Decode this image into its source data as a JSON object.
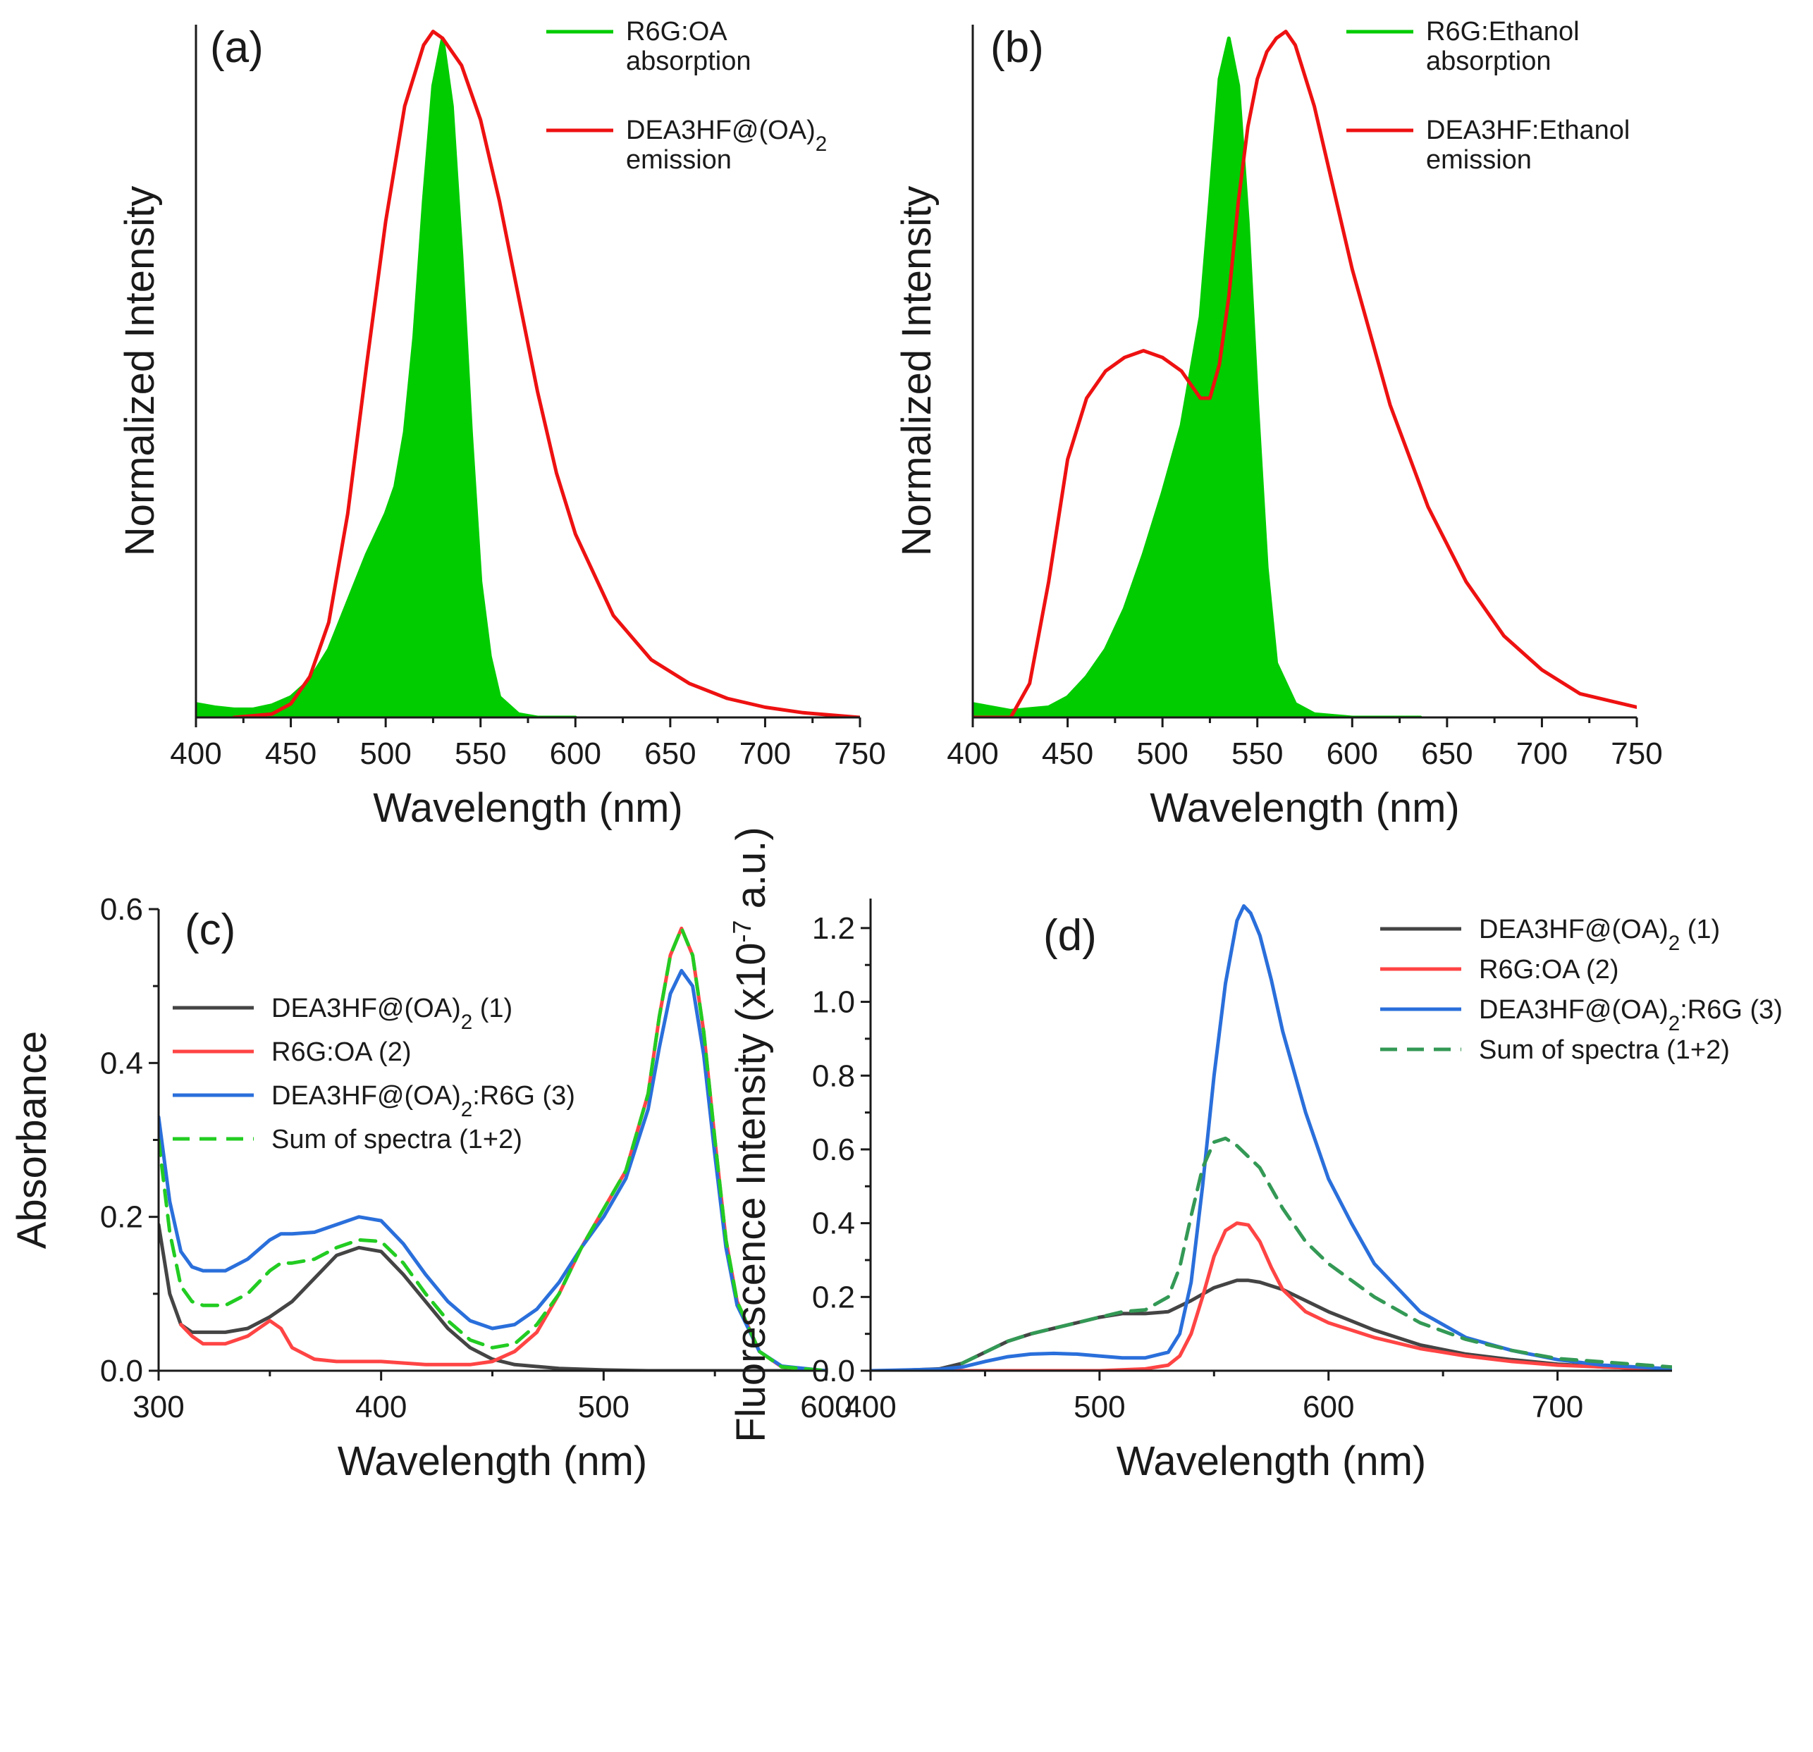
{
  "chart_data": [
    {
      "id": "a",
      "type": "line",
      "panel_label": "(a)",
      "xlabel": "Wavelength (nm)",
      "ylabel": "Normalized Intensity",
      "xlim": [
        400,
        750
      ],
      "ylim": [
        0,
        1.02
      ],
      "xticks": [
        400,
        450,
        500,
        550,
        600,
        650,
        700,
        750
      ],
      "yticks": [],
      "legend_position": "top-right",
      "series": [
        {
          "name": "R6G:OA absorption",
          "legend_lines": [
            "R6G:OA",
            "absorption"
          ],
          "color": "#00cc00",
          "filled": true,
          "dash": false,
          "x": [
            400,
            410,
            420,
            430,
            440,
            450,
            460,
            470,
            480,
            490,
            500,
            505,
            510,
            515,
            520,
            525,
            530,
            535,
            540,
            545,
            550,
            555,
            560,
            570,
            580,
            600
          ],
          "y": [
            0.02,
            0.015,
            0.012,
            0.012,
            0.018,
            0.03,
            0.055,
            0.1,
            0.17,
            0.24,
            0.3,
            0.34,
            0.42,
            0.56,
            0.76,
            0.93,
            1.0,
            0.9,
            0.68,
            0.42,
            0.2,
            0.09,
            0.03,
            0.005,
            0.0,
            0.0
          ]
        },
        {
          "name": "DEA3HF@(OA)2 emission",
          "legend_lines": [
            "DEA3HF@(OA)2",
            "emission"
          ],
          "color": "#ee1111",
          "filled": false,
          "dash": false,
          "x": [
            420,
            440,
            450,
            460,
            470,
            480,
            490,
            500,
            510,
            520,
            525,
            530,
            540,
            550,
            560,
            570,
            580,
            590,
            600,
            620,
            640,
            660,
            680,
            700,
            720,
            750
          ],
          "y": [
            0.0,
            0.005,
            0.02,
            0.06,
            0.14,
            0.3,
            0.52,
            0.73,
            0.9,
            0.99,
            1.01,
            1.0,
            0.96,
            0.88,
            0.76,
            0.62,
            0.48,
            0.36,
            0.27,
            0.15,
            0.085,
            0.05,
            0.028,
            0.015,
            0.007,
            0.0
          ]
        }
      ]
    },
    {
      "id": "b",
      "type": "line",
      "panel_label": "(b)",
      "xlabel": "Wavelength (nm)",
      "ylabel": "Normalized Intensity",
      "xlim": [
        400,
        750
      ],
      "ylim": [
        0,
        1.02
      ],
      "xticks": [
        400,
        450,
        500,
        550,
        600,
        650,
        700,
        750
      ],
      "yticks": [],
      "legend_position": "top-right",
      "series": [
        {
          "name": "R6G:Ethanol absorption",
          "legend_lines": [
            "R6G:Ethanol",
            "absorption"
          ],
          "color": "#00cc00",
          "filled": true,
          "dash": false,
          "x": [
            400,
            420,
            440,
            450,
            460,
            470,
            480,
            490,
            500,
            510,
            520,
            525,
            530,
            535,
            540,
            545,
            550,
            555,
            560,
            570,
            580,
            600,
            636
          ],
          "y": [
            0.02,
            0.01,
            0.015,
            0.03,
            0.06,
            0.1,
            0.16,
            0.24,
            0.33,
            0.43,
            0.59,
            0.76,
            0.94,
            1.0,
            0.93,
            0.73,
            0.46,
            0.22,
            0.08,
            0.02,
            0.005,
            0.0,
            0.0
          ]
        },
        {
          "name": "DEA3HF:Ethanol emission",
          "legend_lines": [
            "DEA3HF:Ethanol",
            "emission"
          ],
          "color": "#ee1111",
          "filled": false,
          "dash": false,
          "x": [
            400,
            420,
            430,
            440,
            450,
            460,
            470,
            480,
            490,
            500,
            510,
            515,
            520,
            525,
            530,
            535,
            540,
            545,
            550,
            555,
            560,
            565,
            570,
            580,
            590,
            600,
            620,
            640,
            660,
            680,
            700,
            720,
            750
          ],
          "y": [
            0.0,
            0.0,
            0.05,
            0.2,
            0.38,
            0.47,
            0.51,
            0.53,
            0.54,
            0.53,
            0.51,
            0.49,
            0.47,
            0.47,
            0.52,
            0.62,
            0.76,
            0.87,
            0.94,
            0.98,
            1.0,
            1.01,
            0.99,
            0.9,
            0.78,
            0.66,
            0.46,
            0.31,
            0.2,
            0.12,
            0.07,
            0.035,
            0.015
          ]
        }
      ]
    },
    {
      "id": "c",
      "type": "line",
      "panel_label": "(c)",
      "xlabel": "Wavelength (nm)",
      "ylabel": "Absorbance",
      "xlim": [
        300,
        600
      ],
      "ylim": [
        0,
        0.6
      ],
      "xticks": [
        300,
        400,
        500,
        600
      ],
      "yticks": [
        0.0,
        0.2,
        0.4,
        0.6
      ],
      "yticklabels": [
        "0.0",
        "0.2",
        "0.4",
        "0.6"
      ],
      "legend_position": "upper-left",
      "series": [
        {
          "name": "DEA3HF@(OA)2 (1)",
          "color": "#444444",
          "filled": false,
          "dash": false,
          "x": [
            300,
            305,
            310,
            315,
            320,
            330,
            340,
            350,
            360,
            370,
            380,
            390,
            400,
            410,
            420,
            430,
            440,
            450,
            460,
            480,
            500,
            520,
            600
          ],
          "y": [
            0.19,
            0.1,
            0.06,
            0.05,
            0.05,
            0.05,
            0.055,
            0.07,
            0.09,
            0.12,
            0.15,
            0.16,
            0.155,
            0.125,
            0.09,
            0.055,
            0.03,
            0.015,
            0.008,
            0.003,
            0.001,
            0.0,
            0.0
          ]
        },
        {
          "name": "R6G:OA (2)",
          "color": "#ff4444",
          "filled": false,
          "dash": false,
          "x": [
            310,
            315,
            320,
            330,
            340,
            345,
            350,
            355,
            360,
            370,
            380,
            400,
            420,
            440,
            450,
            460,
            470,
            480,
            490,
            500,
            510,
            520,
            525,
            530,
            535,
            540,
            545,
            550,
            555,
            560,
            570,
            580,
            600
          ],
          "y": [
            0.06,
            0.045,
            0.035,
            0.035,
            0.045,
            0.055,
            0.065,
            0.055,
            0.03,
            0.015,
            0.012,
            0.012,
            0.008,
            0.008,
            0.012,
            0.025,
            0.05,
            0.1,
            0.16,
            0.21,
            0.26,
            0.36,
            0.46,
            0.54,
            0.575,
            0.54,
            0.44,
            0.3,
            0.17,
            0.09,
            0.025,
            0.005,
            0.0
          ]
        },
        {
          "name": "DEA3HF@(OA)2:R6G (3)",
          "color": "#2a6fdb",
          "filled": false,
          "dash": false,
          "x": [
            300,
            305,
            310,
            315,
            320,
            330,
            340,
            350,
            355,
            360,
            370,
            380,
            390,
            400,
            410,
            420,
            430,
            440,
            450,
            460,
            470,
            480,
            490,
            500,
            510,
            520,
            525,
            530,
            535,
            540,
            545,
            550,
            555,
            560,
            570,
            580,
            600
          ],
          "y": [
            0.33,
            0.22,
            0.155,
            0.135,
            0.13,
            0.13,
            0.145,
            0.17,
            0.178,
            0.178,
            0.18,
            0.19,
            0.2,
            0.195,
            0.165,
            0.125,
            0.09,
            0.065,
            0.055,
            0.06,
            0.08,
            0.115,
            0.16,
            0.2,
            0.25,
            0.34,
            0.42,
            0.49,
            0.52,
            0.5,
            0.41,
            0.28,
            0.16,
            0.085,
            0.025,
            0.006,
            0.0
          ]
        },
        {
          "name": "Sum of spectra (1+2)",
          "color": "#22cc22",
          "filled": false,
          "dash": true,
          "x": [
            300,
            305,
            310,
            315,
            320,
            330,
            340,
            350,
            355,
            360,
            370,
            380,
            390,
            400,
            410,
            420,
            430,
            440,
            450,
            460,
            470,
            480,
            490,
            500,
            510,
            520,
            525,
            530,
            535,
            540,
            545,
            550,
            555,
            560,
            570,
            580,
            600
          ],
          "y": [
            0.3,
            0.18,
            0.11,
            0.09,
            0.085,
            0.085,
            0.1,
            0.13,
            0.14,
            0.14,
            0.145,
            0.16,
            0.17,
            0.168,
            0.14,
            0.1,
            0.065,
            0.04,
            0.03,
            0.035,
            0.06,
            0.1,
            0.16,
            0.21,
            0.26,
            0.36,
            0.46,
            0.54,
            0.575,
            0.54,
            0.44,
            0.3,
            0.17,
            0.09,
            0.025,
            0.005,
            0.0
          ]
        }
      ]
    },
    {
      "id": "d",
      "type": "line",
      "panel_label": "(d)",
      "xlabel": "Wavelength (nm)",
      "ylabel": "Fluorescence Intensity (x10⁻⁷ a.u.)",
      "xlim": [
        400,
        750
      ],
      "ylim": [
        0,
        1.28
      ],
      "xticks": [
        400,
        500,
        600,
        700
      ],
      "yticks": [
        0.0,
        0.2,
        0.4,
        0.6,
        0.8,
        1.0,
        1.2
      ],
      "yticklabels": [
        "0.0",
        "0.2",
        "0.4",
        "0.6",
        "0.8",
        "1.0",
        "1.2"
      ],
      "legend_position": "top-right",
      "series": [
        {
          "name": "DEA3HF@(OA)2 (1)",
          "color": "#444444",
          "filled": false,
          "dash": false,
          "x": [
            410,
            430,
            440,
            450,
            460,
            470,
            480,
            490,
            500,
            510,
            520,
            530,
            540,
            550,
            560,
            565,
            570,
            580,
            600,
            620,
            640,
            660,
            680,
            700,
            720,
            750
          ],
          "y": [
            0.0,
            0.005,
            0.02,
            0.05,
            0.08,
            0.1,
            0.115,
            0.13,
            0.145,
            0.155,
            0.155,
            0.16,
            0.19,
            0.225,
            0.245,
            0.245,
            0.24,
            0.22,
            0.16,
            0.11,
            0.07,
            0.045,
            0.03,
            0.018,
            0.01,
            0.004
          ]
        },
        {
          "name": "R6G:OA (2)",
          "color": "#ff4444",
          "filled": false,
          "dash": false,
          "x": [
            400,
            500,
            520,
            530,
            535,
            540,
            545,
            550,
            555,
            560,
            565,
            570,
            575,
            580,
            590,
            600,
            610,
            620,
            640,
            660,
            680,
            700,
            750
          ],
          "y": [
            0.0,
            0.0,
            0.005,
            0.015,
            0.04,
            0.1,
            0.2,
            0.31,
            0.38,
            0.4,
            0.395,
            0.35,
            0.28,
            0.22,
            0.16,
            0.13,
            0.11,
            0.09,
            0.06,
            0.04,
            0.025,
            0.015,
            0.003
          ]
        },
        {
          "name": "DEA3HF@(OA)2:R6G (3)",
          "color": "#2a6fdb",
          "filled": false,
          "dash": false,
          "x": [
            400,
            430,
            440,
            450,
            460,
            470,
            480,
            490,
            500,
            510,
            520,
            530,
            535,
            540,
            545,
            550,
            555,
            560,
            563,
            566,
            570,
            575,
            580,
            590,
            600,
            610,
            620,
            640,
            660,
            680,
            700,
            720,
            750
          ],
          "y": [
            0.0,
            0.004,
            0.01,
            0.025,
            0.038,
            0.045,
            0.047,
            0.045,
            0.04,
            0.035,
            0.035,
            0.05,
            0.1,
            0.24,
            0.5,
            0.8,
            1.05,
            1.22,
            1.26,
            1.24,
            1.18,
            1.06,
            0.92,
            0.7,
            0.52,
            0.4,
            0.29,
            0.16,
            0.09,
            0.055,
            0.03,
            0.015,
            0.005
          ]
        },
        {
          "name": "Sum of spectra (1+2)",
          "color": "#339955",
          "filled": false,
          "dash": true,
          "x": [
            440,
            450,
            460,
            470,
            480,
            490,
            500,
            510,
            520,
            530,
            535,
            540,
            545,
            550,
            555,
            560,
            570,
            580,
            590,
            600,
            620,
            640,
            660,
            680,
            700,
            750
          ],
          "y": [
            0.02,
            0.05,
            0.08,
            0.1,
            0.115,
            0.13,
            0.145,
            0.16,
            0.165,
            0.2,
            0.28,
            0.42,
            0.55,
            0.62,
            0.63,
            0.61,
            0.55,
            0.44,
            0.35,
            0.29,
            0.2,
            0.13,
            0.085,
            0.055,
            0.033,
            0.01
          ]
        }
      ]
    }
  ]
}
